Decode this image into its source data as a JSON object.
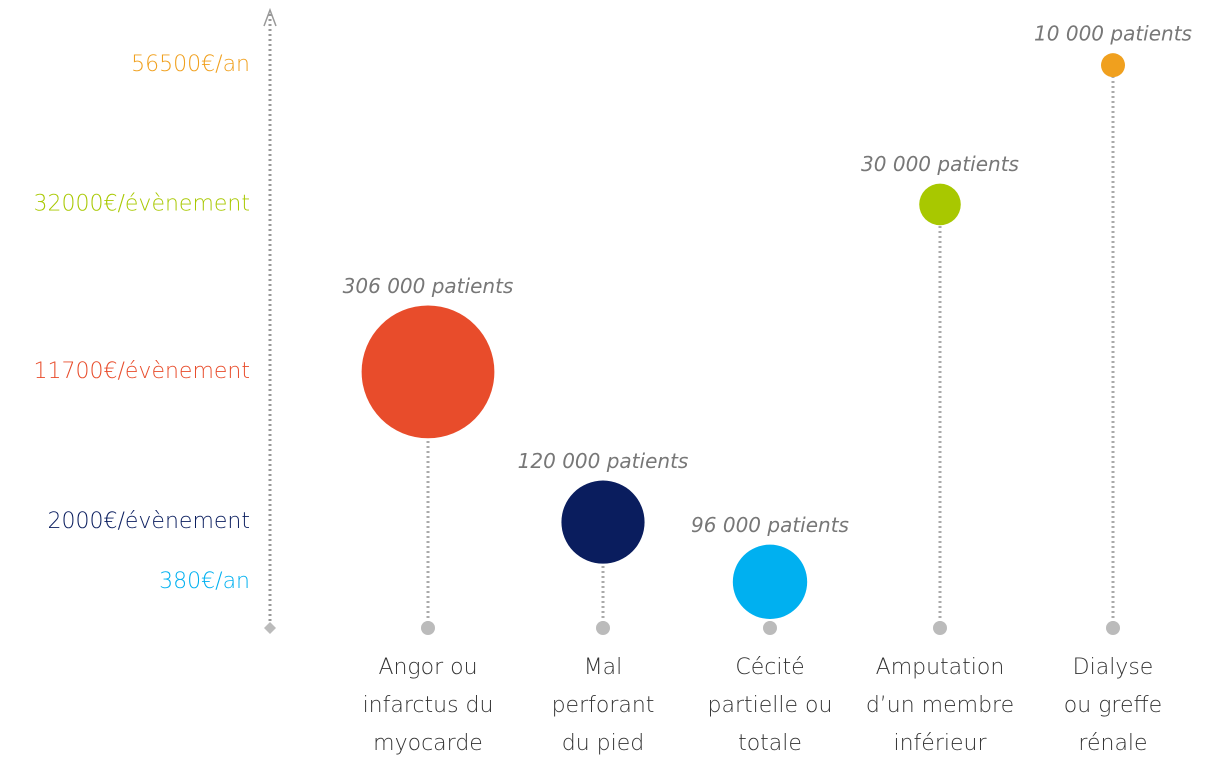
{
  "chart_data": {
    "type": "bubble",
    "categories": [
      [
        "Angor ou",
        "infarctus du",
        "myocarde"
      ],
      [
        "Mal",
        "perforant",
        "du pied"
      ],
      [
        "Cécité",
        "partielle ou",
        "totale"
      ],
      [
        "Amputation",
        "d’un membre",
        "inférieur"
      ],
      [
        "Dialyse",
        "ou greffe",
        "rénale"
      ]
    ],
    "values": [
      11700,
      2000,
      380,
      32000,
      56500
    ],
    "value_labels": [
      "11700€/évènement",
      "2000€/évènement",
      "380€/an",
      "32000€/évènement",
      "56500€/an"
    ],
    "sizes": [
      306000,
      120000,
      96000,
      30000,
      10000
    ],
    "size_labels": [
      "306 000 patients",
      "120 000 patients",
      "96 000 patients",
      "30 000 patients",
      "10 000 patients"
    ],
    "colors": [
      "#e84c2b",
      "#0a1d5e",
      "#00b0f0",
      "#a8c800",
      "#f0a01e"
    ],
    "ylim": [
      0,
      60000
    ],
    "yscale": "sqrt"
  }
}
